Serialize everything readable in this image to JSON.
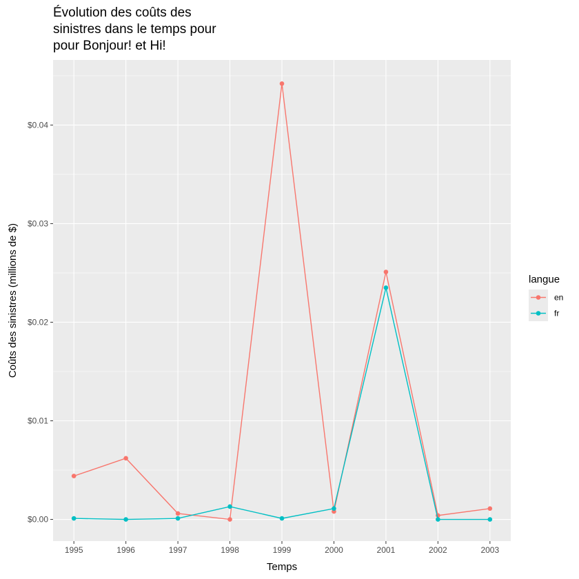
{
  "chart_data": {
    "type": "line",
    "title_lines": [
      "Évolution des coûts des",
      "sinistres dans le temps pour",
      "pour Bonjour! et Hi!"
    ],
    "xlabel": "Temps",
    "ylabel": "Coûts des sinistres (millions de $)",
    "x": [
      1995,
      1996,
      1997,
      1998,
      1999,
      2000,
      2001,
      2002,
      2003
    ],
    "x_tick_labels": [
      "1995",
      "1996",
      "1997",
      "1998",
      "1999",
      "2000",
      "2001",
      "2002",
      "2003"
    ],
    "y_ticks": [
      0,
      0.01,
      0.02,
      0.03,
      0.04
    ],
    "y_tick_labels": [
      "$0.00",
      "$0.01",
      "$0.02",
      "$0.03",
      "$0.04"
    ],
    "ylim": [
      -0.0022,
      0.0466
    ],
    "xlim": [
      1994.6,
      2003.4
    ],
    "grid": true,
    "legend": {
      "title": "langue",
      "position": "right"
    },
    "series": [
      {
        "name": "en",
        "color": "#F8766D",
        "values": [
          0.0044,
          0.0062,
          0.0006,
          0.0,
          0.0442,
          0.0008,
          0.0251,
          0.0004,
          0.0011
        ]
      },
      {
        "name": "fr",
        "color": "#00BFC4",
        "values": [
          0.0001,
          0.0,
          0.0001,
          0.0013,
          0.0001,
          0.0011,
          0.0235,
          0.0,
          0.0
        ]
      }
    ]
  }
}
